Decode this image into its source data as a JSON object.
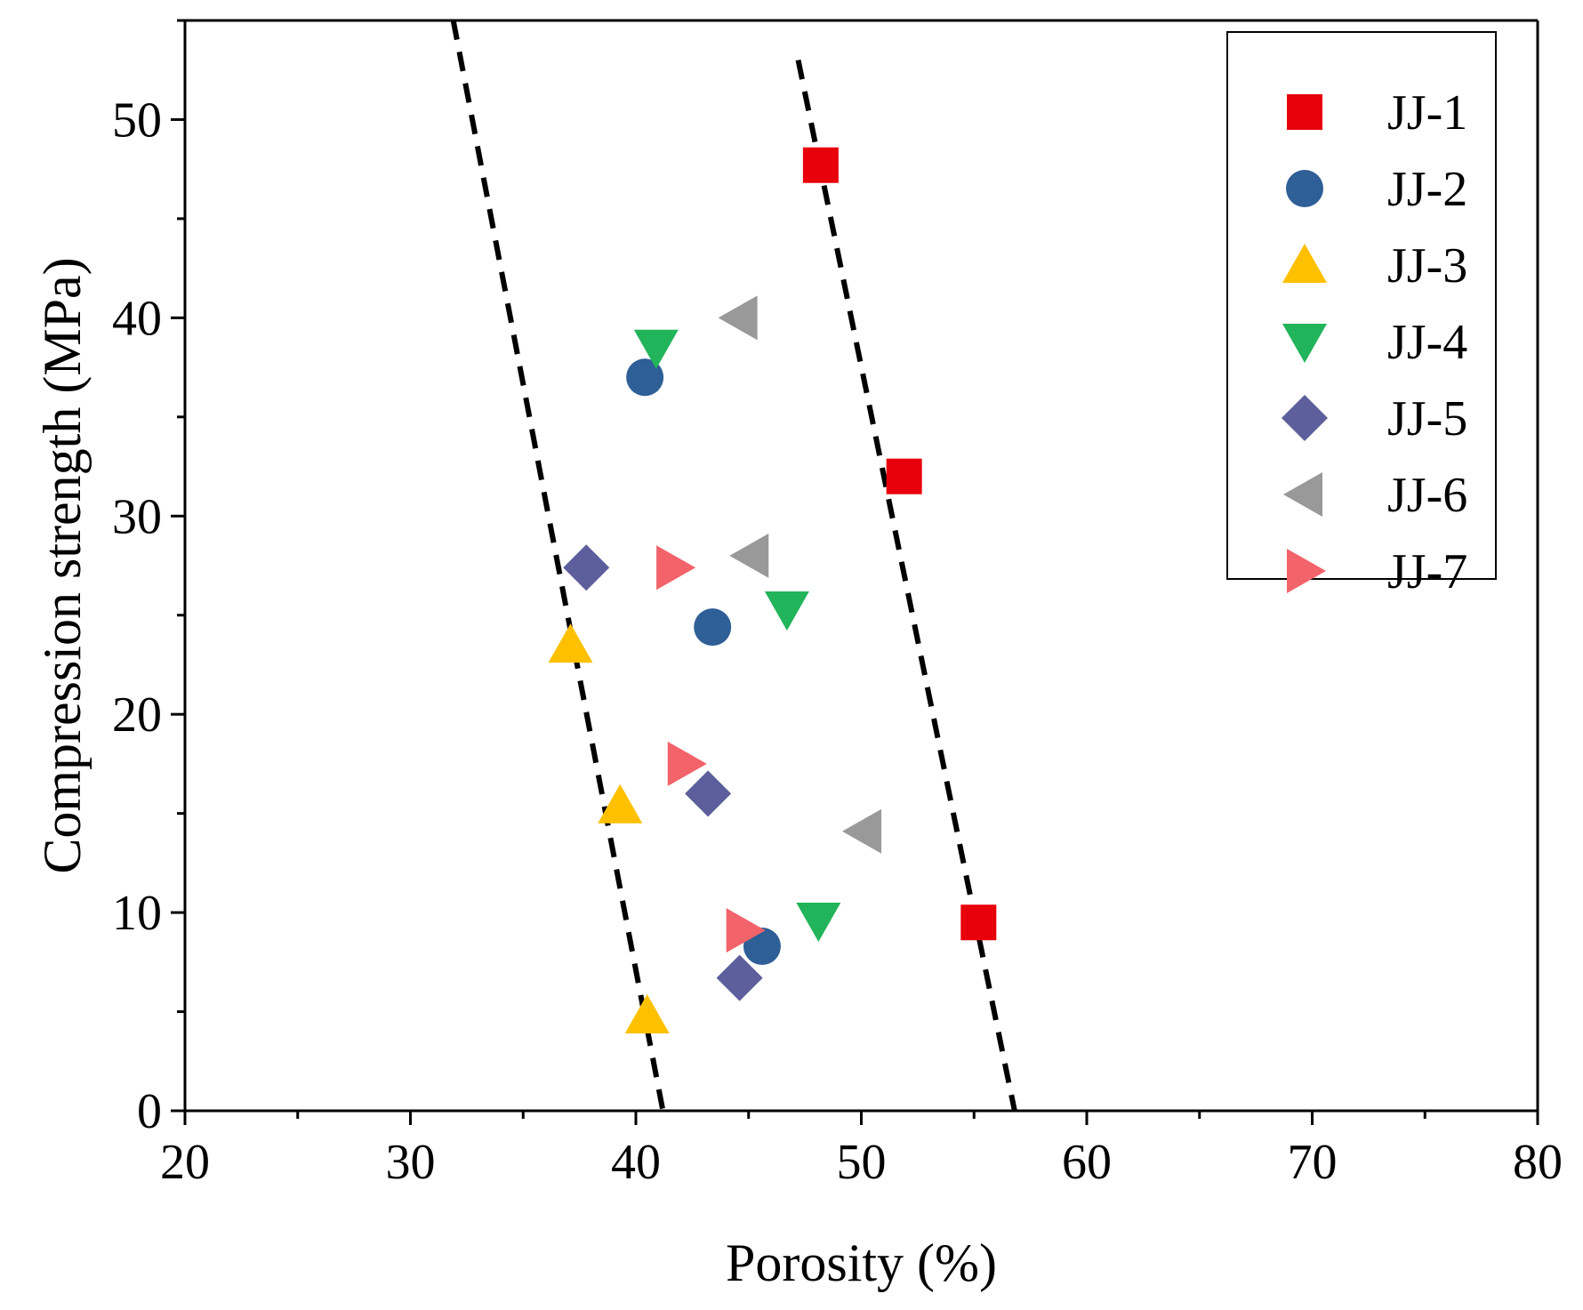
{
  "chart_data": {
    "type": "scatter",
    "title": "",
    "xlabel": "Porosity (%)",
    "ylabel": "Compression strength (MPa)",
    "xlim": [
      20,
      80
    ],
    "ylim": [
      0,
      55
    ],
    "xticks": [
      "20",
      "30",
      "40",
      "50",
      "60",
      "70",
      "80"
    ],
    "yticks": [
      "0",
      "10",
      "20",
      "30",
      "40",
      "50"
    ],
    "legend_position": "top-right",
    "series": [
      {
        "name": "JJ-1",
        "marker": "square",
        "color": "#e8000b",
        "points": [
          [
            48.2,
            47.7
          ],
          [
            51.9,
            32.0
          ],
          [
            55.2,
            9.5
          ]
        ]
      },
      {
        "name": "JJ-2",
        "marker": "circle",
        "color": "#2e5f96",
        "points": [
          [
            40.4,
            37.0
          ],
          [
            43.4,
            24.4
          ],
          [
            45.6,
            8.3
          ]
        ]
      },
      {
        "name": "JJ-3",
        "marker": "triangle-up",
        "color": "#ffc000",
        "points": [
          [
            37.1,
            23.5
          ],
          [
            39.3,
            15.4
          ],
          [
            40.5,
            4.8
          ]
        ]
      },
      {
        "name": "JJ-4",
        "marker": "triangle-down",
        "color": "#22b45b",
        "points": [
          [
            40.9,
            38.5
          ],
          [
            46.7,
            25.3
          ],
          [
            48.1,
            9.6
          ]
        ]
      },
      {
        "name": "JJ-5",
        "marker": "diamond",
        "color": "#5d5e9c",
        "points": [
          [
            37.8,
            27.4
          ],
          [
            43.2,
            16.0
          ],
          [
            44.6,
            6.7
          ]
        ]
      },
      {
        "name": "JJ-6",
        "marker": "triangle-left",
        "color": "#999999",
        "points": [
          [
            44.6,
            40.0
          ],
          [
            45.1,
            28.0
          ],
          [
            50.1,
            14.1
          ]
        ]
      },
      {
        "name": "JJ-7",
        "marker": "triangle-right",
        "color": "#f2636a",
        "points": [
          [
            41.7,
            27.4
          ],
          [
            42.2,
            17.5
          ],
          [
            44.8,
            9.1
          ]
        ]
      }
    ],
    "reference_lines": [
      {
        "name": "left-boundary",
        "style": "dashed",
        "color": "#000000",
        "points": [
          [
            31.9,
            55.0
          ],
          [
            41.2,
            0.0
          ]
        ]
      },
      {
        "name": "right-boundary",
        "style": "dashed",
        "color": "#000000",
        "points": [
          [
            47.2,
            53.0
          ],
          [
            56.8,
            0.0
          ]
        ]
      }
    ]
  }
}
